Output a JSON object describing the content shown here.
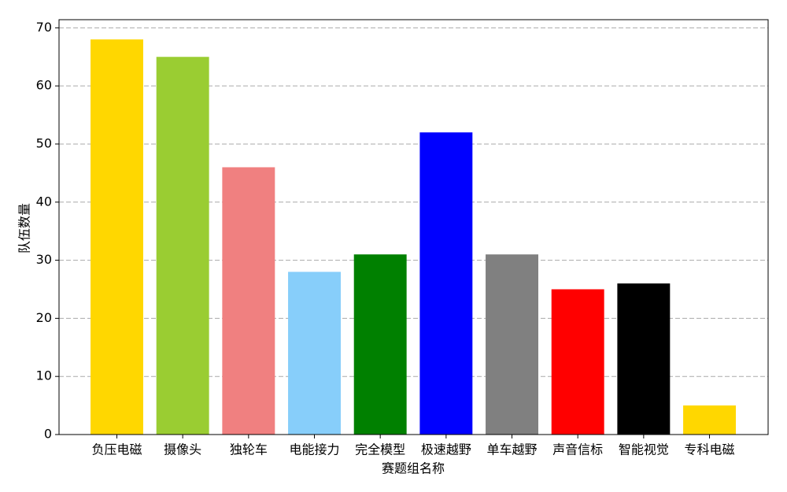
{
  "chart_data": {
    "type": "bar",
    "x_label": "赛题组名称",
    "y_label": "队伍数量",
    "categories": [
      "负压电磁",
      "摄像头",
      "独轮车",
      "电能接力",
      "完全模型",
      "极速越野",
      "单车越野",
      "声音信标",
      "智能视觉",
      "专科电磁"
    ],
    "values": [
      68,
      65,
      46,
      28,
      31,
      52,
      31,
      25,
      26,
      5
    ],
    "colors": [
      "#ffd700",
      "#9acd32",
      "#f08080",
      "#87cefa",
      "#008000",
      "#0000ff",
      "#808080",
      "#ff0000",
      "#000000",
      "#ffd700"
    ],
    "ylim": [
      0,
      71.4
    ],
    "yticks": [
      0,
      10,
      20,
      30,
      40,
      50,
      60,
      70
    ],
    "grid": true
  }
}
